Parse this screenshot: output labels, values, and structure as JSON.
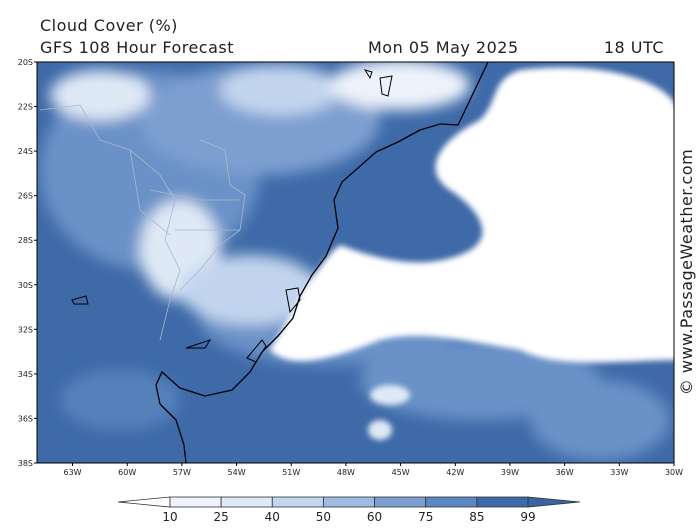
{
  "header": {
    "title": "Cloud Cover (%)",
    "subtitle": "GFS 108 Hour Forecast",
    "date": "Mon 05 May 2025",
    "time": "18 UTC"
  },
  "map": {
    "lat_labels": [
      "20S",
      "22S",
      "24S",
      "26S",
      "28S",
      "30S",
      "32S",
      "34S",
      "36S",
      "38S"
    ],
    "lon_labels": [
      "63W",
      "60W",
      "57W",
      "54W",
      "51W",
      "48W",
      "45W",
      "42W",
      "39W",
      "36W",
      "33W",
      "30W"
    ]
  },
  "legend": {
    "ticks": [
      10,
      25,
      40,
      50,
      60,
      75,
      85,
      99
    ]
  },
  "watermark": "© www.PassageWeather.com"
}
